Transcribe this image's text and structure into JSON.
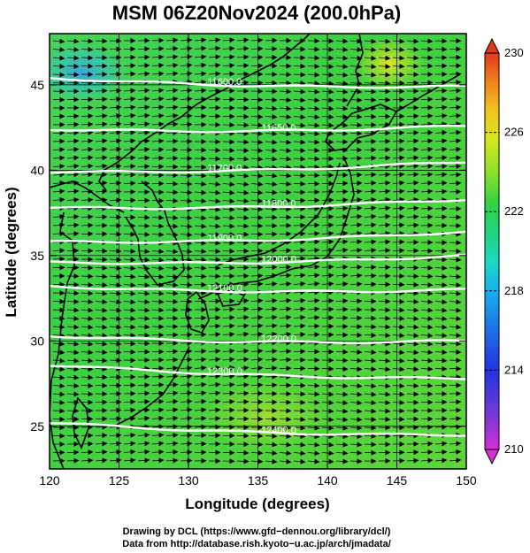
{
  "title": "MSM 06Z20Nov2024 (200.0hPa)",
  "xlabel": "Longitude (degrees)",
  "ylabel": "Latitude  (degrees)",
  "x_ticks": [
    "120",
    "125",
    "130",
    "135",
    "140",
    "145",
    "150"
  ],
  "y_ticks": [
    "25",
    "30",
    "35",
    "40",
    "45"
  ],
  "colorbar": {
    "ticks": [
      "230",
      "226",
      "222",
      "218",
      "214",
      "210"
    ],
    "min": 210,
    "max": 230,
    "colors": [
      "#d22fd2",
      "#7a3cd6",
      "#2b39e0",
      "#1e74e8",
      "#19b3ea",
      "#1ed6c2",
      "#22d08a",
      "#27d052",
      "#3fd43a",
      "#8fe02a",
      "#d8e91e",
      "#f4b81d",
      "#f07a1e",
      "#e2381d"
    ]
  },
  "map": {
    "lon_range": [
      120,
      150
    ],
    "lat_range": [
      22.5,
      48
    ],
    "gridlines": true,
    "contours": [
      {
        "label": "11600.0",
        "lat_left": 45.4,
        "lat_right": 44.9
      },
      {
        "label": "11650.0",
        "lat_left": 42.4,
        "lat_right": 42.6
      },
      {
        "label": "11700.0",
        "lat_left": 39.9,
        "lat_right": 40.5
      },
      {
        "label": "11800.0",
        "lat_left": 37.8,
        "lat_right": 38.3
      },
      {
        "label": "11900.0",
        "lat_left": 35.8,
        "lat_right": 36.4
      },
      {
        "label": "12000.0",
        "lat_left": 34.6,
        "lat_right": 35.0
      },
      {
        "label": "12100.0",
        "lat_left": 33.2,
        "lat_right": 33.0
      },
      {
        "label": "12200.0",
        "lat_left": 30.3,
        "lat_right": 30.0
      },
      {
        "label": "12300.0",
        "lat_left": 28.6,
        "lat_right": 27.8
      },
      {
        "label": "12400.0",
        "lat_left": 25.2,
        "lat_right": 24.5
      }
    ],
    "wind": "westerly vectors",
    "field_colors": {
      "low": "#3aa8e0",
      "mid": "#3ed047",
      "high": "#b9e12a"
    }
  },
  "credits": [
    "Drawing by DCL (https://www.gfd−dennou.org/library/dcl/)",
    "Data from http://database.rish.kyoto−u.ac.jp/arch/jmadata/"
  ]
}
